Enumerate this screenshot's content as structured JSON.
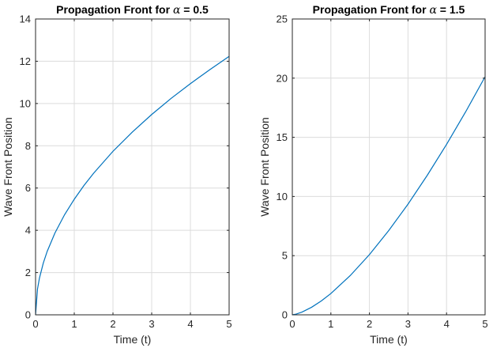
{
  "chart_data": [
    {
      "type": "line",
      "title_prefix": "Propagation Front for ",
      "title_symbol": "α",
      "title_suffix": " = 0.5",
      "xlabel": "Time (t)",
      "ylabel": "Wave Front Position",
      "xlim": [
        0,
        5
      ],
      "ylim": [
        0,
        14
      ],
      "xticks": [
        0,
        1,
        2,
        3,
        4,
        5
      ],
      "yticks": [
        0,
        2,
        4,
        6,
        8,
        10,
        12,
        14
      ],
      "grid": true,
      "color": "#0072BD",
      "series": [
        {
          "x": [
            0,
            0.05,
            0.1,
            0.2,
            0.3,
            0.5,
            0.75,
            1,
            1.25,
            1.5,
            2,
            2.5,
            3,
            3.5,
            4,
            4.5,
            5
          ],
          "values": [
            0,
            1.22,
            1.73,
            2.45,
            3.0,
            3.87,
            4.74,
            5.47,
            6.12,
            6.7,
            7.74,
            8.65,
            9.48,
            10.24,
            10.94,
            11.6,
            12.23
          ]
        }
      ]
    },
    {
      "type": "line",
      "title_prefix": "Propagation Front for ",
      "title_symbol": "α",
      "title_suffix": " = 1.5",
      "xlabel": "Time (t)",
      "ylabel": "Wave Front Position",
      "xlim": [
        0,
        5
      ],
      "ylim": [
        0,
        25
      ],
      "xticks": [
        0,
        1,
        2,
        3,
        4,
        5
      ],
      "yticks": [
        0,
        5,
        10,
        15,
        20,
        25
      ],
      "grid": true,
      "color": "#0072BD",
      "series": [
        {
          "x": [
            0,
            0.1,
            0.25,
            0.5,
            0.75,
            1,
            1.5,
            2,
            2.5,
            3,
            3.5,
            4,
            4.5,
            5
          ],
          "values": [
            0,
            0.06,
            0.23,
            0.64,
            1.17,
            1.8,
            3.31,
            5.09,
            7.12,
            9.35,
            11.79,
            14.4,
            17.18,
            20.12
          ]
        }
      ]
    }
  ]
}
